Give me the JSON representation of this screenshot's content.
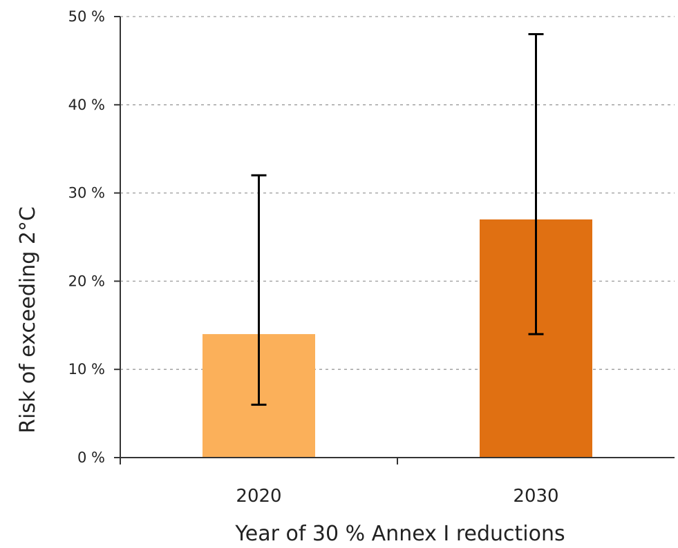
{
  "chart_data": {
    "type": "bar",
    "title": "",
    "xlabel": "Year of 30 % Annex I reductions",
    "ylabel": "Risk of exceeding 2°C",
    "categories": [
      "2020",
      "2030"
    ],
    "values": [
      14,
      27
    ],
    "error_low": [
      6,
      14
    ],
    "error_high": [
      32,
      48
    ],
    "colors": [
      "#fbb05a",
      "#e07012"
    ],
    "ylim": [
      0,
      50
    ],
    "yticks": [
      0,
      10,
      20,
      30,
      40,
      50
    ],
    "ytick_labels": [
      "0 %",
      "10 %",
      "20 %",
      "30 %",
      "40 %",
      "50 %"
    ],
    "grid": true,
    "legend": "none"
  }
}
